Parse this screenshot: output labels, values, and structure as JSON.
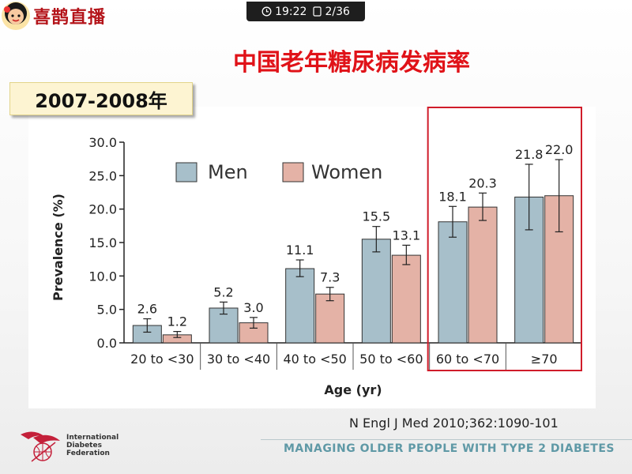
{
  "app": {
    "brand": "喜鹊直播"
  },
  "status_bar": {
    "time": "19:22",
    "page": "2/36"
  },
  "slide": {
    "title": "中国老年糖尿病发病率",
    "year_label": "2007-2008年",
    "citation": "N Engl J Med 2010;362:1090-101",
    "footer": "MANAGING OLDER PEOPLE WITH TYPE 2 DIABETES",
    "org": {
      "line1": "International",
      "line2": "Diabetes",
      "line3": "Federation"
    }
  },
  "colors": {
    "men": "#a7bfca",
    "women": "#e4b2a6",
    "highlight": "#d01c2a",
    "title": "#e01218"
  },
  "chart_data": {
    "type": "bar",
    "xlabel": "Age (yr)",
    "ylabel": "Prevalence (%)",
    "ylim": [
      0,
      30
    ],
    "yticks": [
      "0.0",
      "5.0",
      "10.0",
      "15.0",
      "20.0",
      "25.0",
      "30.0"
    ],
    "categories": [
      "20 to <30",
      "30 to <40",
      "40 to <50",
      "50 to <60",
      "60 to <70",
      "≥70"
    ],
    "series": [
      {
        "name": "Men",
        "values": [
          2.6,
          5.2,
          11.1,
          15.5,
          18.1,
          21.8
        ],
        "labels": [
          "2.6",
          "5.2",
          "11.1",
          "15.5",
          "18.1",
          "21.8"
        ],
        "error": [
          [
            1.6,
            3.6
          ],
          [
            4.3,
            6.1
          ],
          [
            9.9,
            12.4
          ],
          [
            13.6,
            17.4
          ],
          [
            15.8,
            20.4
          ],
          [
            16.9,
            26.7
          ]
        ]
      },
      {
        "name": "Women",
        "values": [
          1.2,
          3.0,
          7.3,
          13.1,
          20.3,
          22.0
        ],
        "labels": [
          "1.2",
          "3.0",
          "7.3",
          "13.1",
          "20.3",
          "22.0"
        ],
        "error": [
          [
            0.8,
            1.7
          ],
          [
            2.2,
            3.8
          ],
          [
            6.3,
            8.3
          ],
          [
            11.7,
            14.6
          ],
          [
            18.3,
            22.4
          ],
          [
            16.6,
            27.4
          ]
        ]
      }
    ],
    "highlight_categories": [
      "60 to <70",
      "≥70"
    ]
  }
}
